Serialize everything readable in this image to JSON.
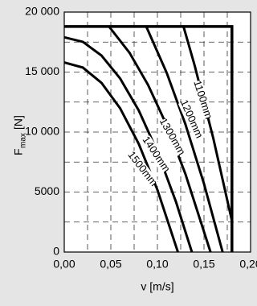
{
  "chart_data": {
    "type": "line",
    "x_label": "v [m/s]",
    "y_label": {
      "main": "F",
      "sub": "max",
      "unit": "[N]"
    },
    "xlim": [
      0,
      0.2
    ],
    "xticks": [
      {
        "value": 0,
        "label": "0,00"
      },
      {
        "value": 0.05,
        "label": "0,05"
      },
      {
        "value": 0.1,
        "label": "0,10"
      },
      {
        "value": 0.15,
        "label": "0,15"
      },
      {
        "value": 0.2,
        "label": "0,20"
      }
    ],
    "ylim": [
      0,
      20000
    ],
    "yticks": [
      0,
      5000,
      {
        "value": 10000,
        "label": "10 000"
      },
      {
        "value": 15000,
        "label": "15 000"
      },
      {
        "value": 20000,
        "label": "20 000"
      }
    ],
    "grid": true,
    "color": "#000000",
    "limit": {
      "x": [
        0,
        0.18,
        0.18
      ],
      "values": [
        18800,
        18800,
        0
      ]
    },
    "series": [
      {
        "name": "1100mm",
        "color": "#000000",
        "x": [
          0.128,
          0.14,
          0.16,
          0.18
        ],
        "values": [
          18800,
          15546,
          9477,
          2597
        ]
      },
      {
        "name": "1200mm",
        "color": "#000000",
        "x": [
          0.088,
          0.11,
          0.13,
          0.15,
          0.17
        ],
        "values": [
          18800,
          14930,
          10664,
          5689,
          0
        ]
      },
      {
        "name": "1300mm",
        "color": "#000000",
        "x": [
          0.048,
          0.07,
          0.09,
          0.11,
          0.13,
          0.157
        ],
        "values": [
          18800,
          16617,
          13925,
          10559,
          6520,
          0
        ]
      },
      {
        "name": "1400mm",
        "color": "#000000",
        "x": [
          0,
          0.02,
          0.04,
          0.06,
          0.08,
          0.1,
          0.12,
          0.137
        ],
        "values": [
          17900,
          17519,
          16374,
          14466,
          11797,
          8363,
          4167,
          0
        ]
      },
      {
        "name": "1500mm",
        "color": "#000000",
        "x": [
          0,
          0.02,
          0.04,
          0.06,
          0.08,
          0.1,
          0.122
        ],
        "values": [
          15800,
          15375,
          14100,
          11977,
          9006,
          5185,
          0
        ]
      }
    ]
  }
}
